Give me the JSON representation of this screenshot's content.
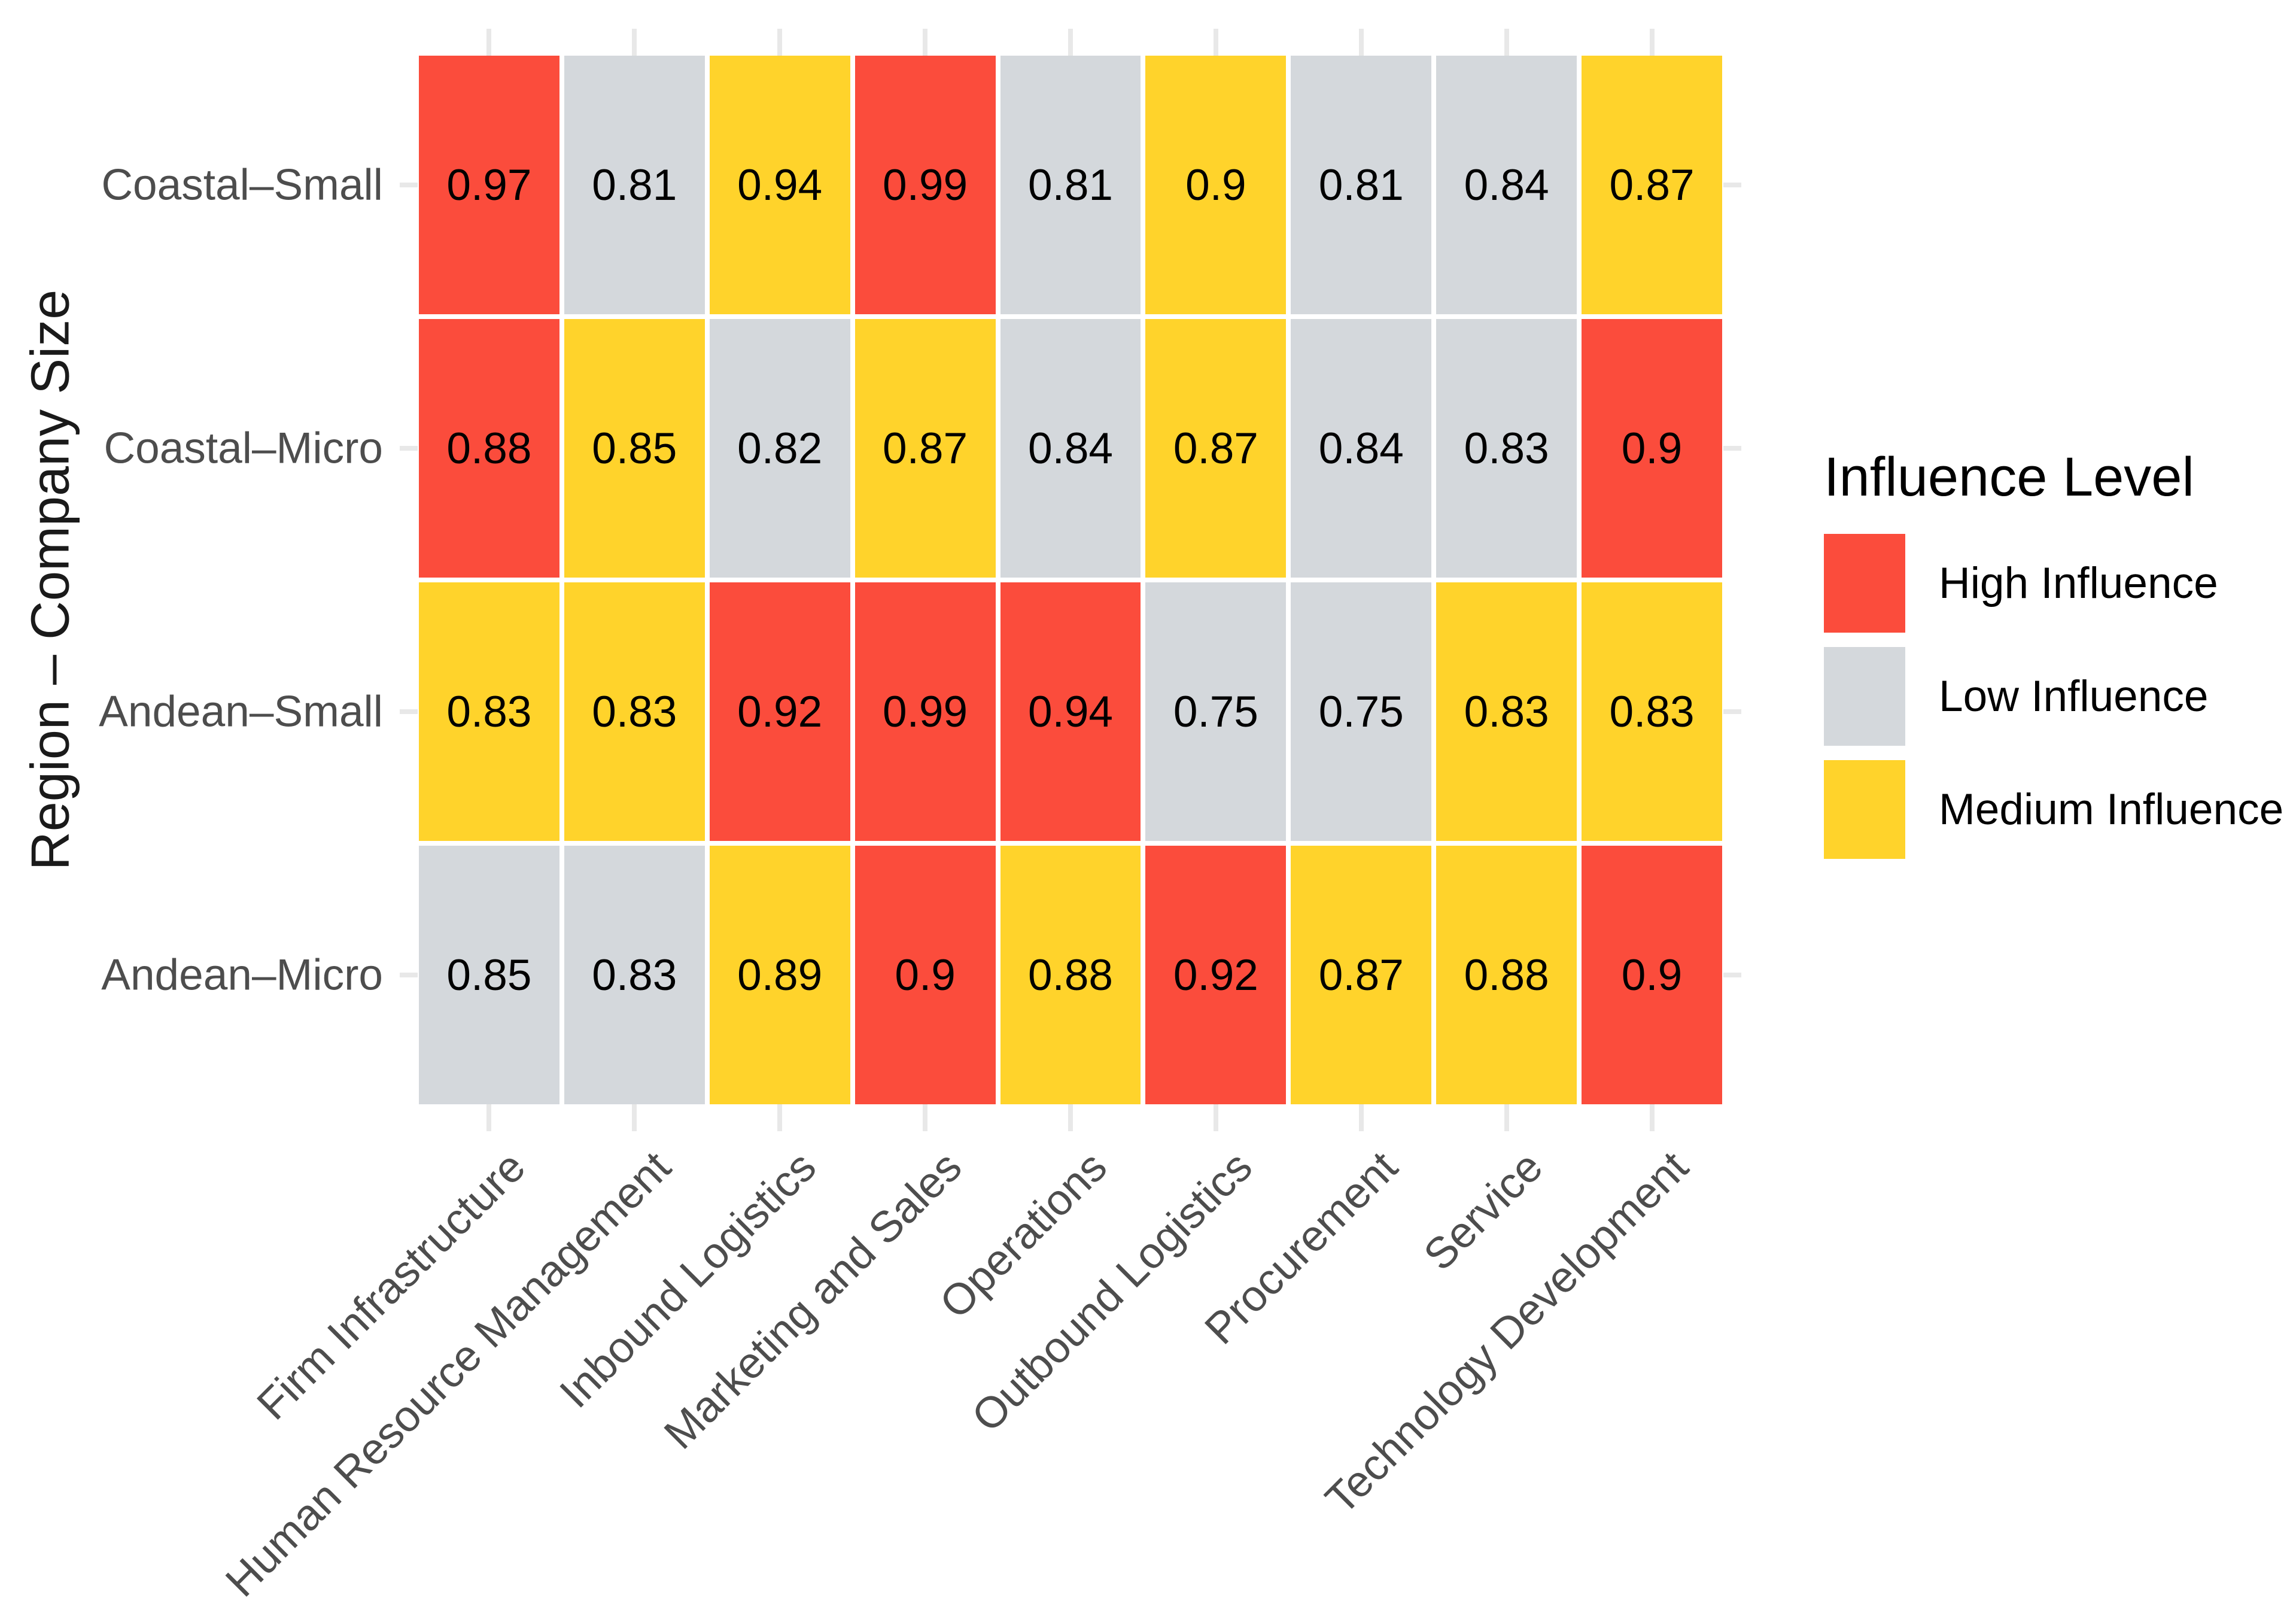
{
  "chart_data": {
    "type": "heatmap",
    "ylabel": "Region – Company Size",
    "xlabel": "",
    "title": "",
    "legend_title": "Influence Level",
    "legend_position": "right",
    "grid": false,
    "x_categories": [
      "Firm Infrastructure",
      "Human Resource Management",
      "Inbound Logistics",
      "Marketing and Sales",
      "Operations",
      "Outbound Logistics",
      "Procurement",
      "Service",
      "Technology Development"
    ],
    "y_categories": [
      "Coastal–Small",
      "Coastal–Micro",
      "Andean–Small",
      "Andean–Micro"
    ],
    "levels": [
      {
        "id": "high",
        "label": "High Influence",
        "color": "#FB4C3C"
      },
      {
        "id": "low",
        "label": "Low Influence",
        "color": "#D4D8DC"
      },
      {
        "id": "medium",
        "label": "Medium Influence",
        "color": "#FFD32B"
      }
    ],
    "rows": [
      {
        "label": "Coastal–Small",
        "values": [
          "0.97",
          "0.81",
          "0.94",
          "0.99",
          "0.81",
          "0.9",
          "0.81",
          "0.84",
          "0.87"
        ],
        "levels": [
          "high",
          "low",
          "medium",
          "high",
          "low",
          "medium",
          "low",
          "low",
          "medium"
        ]
      },
      {
        "label": "Coastal–Micro",
        "values": [
          "0.88",
          "0.85",
          "0.82",
          "0.87",
          "0.84",
          "0.87",
          "0.84",
          "0.83",
          "0.9"
        ],
        "levels": [
          "high",
          "medium",
          "low",
          "medium",
          "low",
          "medium",
          "low",
          "low",
          "high"
        ]
      },
      {
        "label": "Andean–Small",
        "values": [
          "0.83",
          "0.83",
          "0.92",
          "0.99",
          "0.94",
          "0.75",
          "0.75",
          "0.83",
          "0.83"
        ],
        "levels": [
          "medium",
          "medium",
          "high",
          "high",
          "high",
          "low",
          "low",
          "medium",
          "medium"
        ]
      },
      {
        "label": "Andean–Micro",
        "values": [
          "0.85",
          "0.83",
          "0.89",
          "0.9",
          "0.88",
          "0.92",
          "0.87",
          "0.88",
          "0.9"
        ],
        "levels": [
          "low",
          "low",
          "medium",
          "high",
          "medium",
          "high",
          "medium",
          "medium",
          "high"
        ]
      }
    ]
  },
  "colors": {
    "background": "#ffffff",
    "cell_text": "#000000",
    "axis_text": "#4d4d4d",
    "axis_title": "#1a1a1a",
    "legend_text": "#000000",
    "tick": "#e8e8e8"
  }
}
